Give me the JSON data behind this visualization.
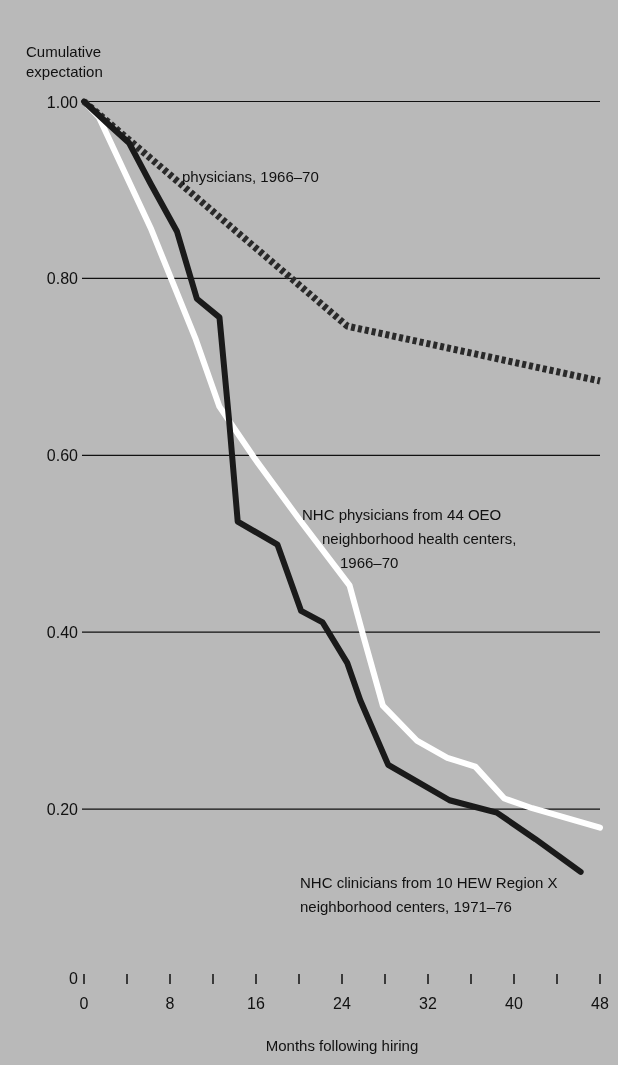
{
  "chart_data": {
    "type": "line",
    "xlabel": "Months following hiring",
    "ylabel": "Cumulative expectation",
    "xlim": [
      0,
      48
    ],
    "xticks": [
      0,
      {
        "value": 4,
        "label": null
      },
      8,
      {
        "value": 12,
        "label": null
      },
      16,
      {
        "value": 20,
        "label": null
      },
      24,
      {
        "value": 28,
        "label": null
      },
      32,
      {
        "value": 36,
        "label": null
      },
      40,
      {
        "value": 44,
        "label": null
      },
      48
    ],
    "ylim": [
      0,
      1
    ],
    "yticks": [
      0,
      {
        "value": 0.2,
        "label": "0.20"
      },
      {
        "value": 0.4,
        "label": "0.40"
      },
      {
        "value": 0.6,
        "label": "0.60"
      },
      {
        "value": 0.8,
        "label": "0.80"
      },
      {
        "value": 1,
        "label": "1.00"
      }
    ],
    "grid": "y",
    "marker": "none",
    "line_style": "solid",
    "series": [
      {
        "name": "physicians, 1966–70",
        "color": "#2a2a2a",
        "line_style": "dashed",
        "x": [
          0,
          24.5,
          48
        ],
        "values": [
          1.0,
          0.746,
          0.684
        ]
      },
      {
        "name": "NHC physicians from 44 OEO neighborhood health centers, 1966–70",
        "color": "#ffffff",
        "x": [
          0,
          1.4,
          6.2,
          10.4,
          12.6,
          15.9,
          20,
          24.7,
          26,
          27.8,
          31,
          33.8,
          36.4,
          39.1,
          41.7,
          48
        ],
        "values": [
          1.0,
          0.982,
          0.857,
          0.731,
          0.655,
          0.596,
          0.528,
          0.453,
          0.395,
          0.317,
          0.277,
          0.258,
          0.248,
          0.212,
          0.201,
          0.179
        ]
      },
      {
        "name": "NHC clinicians from 10 HEW Region X neighborhood centers, 1971–76",
        "color": "#1a1a1a",
        "x": [
          0,
          2.3,
          4.2,
          6.2,
          8.65,
          10.5,
          12.6,
          13.5,
          14.3,
          18,
          20.2,
          22.2,
          24.5,
          25.7,
          28.3,
          34,
          38.4,
          42,
          46.2
        ],
        "values": [
          1.0,
          0.974,
          0.953,
          0.907,
          0.853,
          0.777,
          0.756,
          0.639,
          0.525,
          0.499,
          0.424,
          0.411,
          0.365,
          0.323,
          0.25,
          0.21,
          0.196,
          0.166,
          0.129
        ]
      }
    ]
  }
}
